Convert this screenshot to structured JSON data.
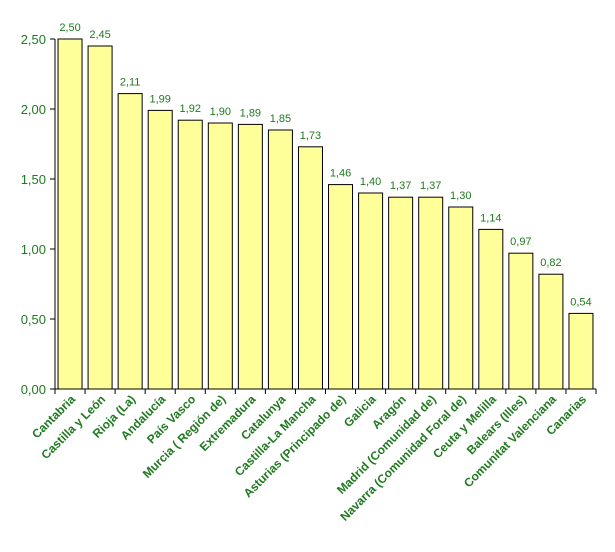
{
  "chart_data": {
    "type": "bar",
    "title": "",
    "xlabel": "",
    "ylabel": "",
    "categories": [
      "Cantabria",
      "Castilla y León",
      "Rioja (La)",
      "Andalucía",
      "País Vasco",
      "Murcia ( Región de)",
      "Extremadura",
      "Catalunya",
      "Castilla-La Mancha",
      "Asturias (Principado de)",
      "Galicia",
      "Aragón",
      "Madrid (Comunidad de)",
      "Navarra (Comunidad Foral de)",
      "Ceuta y Melilla",
      "Balears (Illes)",
      "Comunitat Valenciana",
      "Canarias"
    ],
    "values": [
      2.5,
      2.45,
      2.11,
      1.99,
      1.92,
      1.9,
      1.89,
      1.85,
      1.73,
      1.46,
      1.4,
      1.37,
      1.37,
      1.3,
      1.14,
      0.97,
      0.82,
      0.54
    ],
    "value_labels": [
      "2,50",
      "2,45",
      "2,11",
      "1,99",
      "1,92",
      "1,90",
      "1,89",
      "1,85",
      "1,73",
      "1,46",
      "1,40",
      "1,37",
      "1,37",
      "1,30",
      "1,14",
      "0,97",
      "0,82",
      "0,54"
    ],
    "ylim": [
      0,
      2.5
    ],
    "yticks": [
      0,
      0.5,
      1.0,
      1.5,
      2.0,
      2.5
    ],
    "ytick_labels": [
      "0,00",
      "0,50",
      "1,00",
      "1,50",
      "2,00",
      "2,50"
    ],
    "grid": false,
    "legend": "none"
  },
  "colors": {
    "bar_fill": "#ffff99",
    "bar_stroke": "#000000",
    "text": "#1f7a1f",
    "axis": "#000000"
  }
}
